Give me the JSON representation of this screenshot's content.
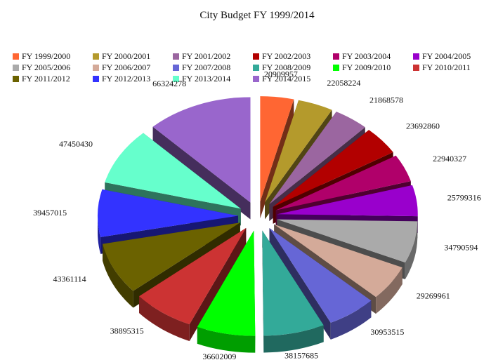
{
  "chart_data": {
    "type": "pie",
    "style": "3d-exploded",
    "title": "City Budget FY 1999/2014",
    "legend_position": "top",
    "categories": [
      "FY 1999/2000",
      "FY 2000/2001",
      "FY 2001/2002",
      "FY 2002/2003",
      "FY 2003/2004",
      "FY 2004/2005",
      "FY 2005/2006",
      "FY 2006/2007",
      "FY 2007/2008",
      "FY 2008/2009",
      "FY 2009/2010",
      "FY 2010/2011",
      "FY 2011/2012",
      "FY 2012/2013",
      "FY 2013/2014",
      "FY 2014/2015"
    ],
    "values": [
      20909957,
      22058224,
      21868578,
      23692860,
      22940327,
      25799316,
      34790594,
      29269961,
      30953515,
      38157685,
      36602009,
      38895315,
      43361114,
      39457015,
      47450430,
      66324278
    ],
    "value_labels": [
      "20909957",
      "22058224",
      "21868578",
      "23692860",
      "22940327",
      "25799316",
      "34790594",
      "29269961",
      "30953515",
      "38157685",
      "36602009",
      "38895315",
      "43361114",
      "39457015",
      "47450430",
      "66324278"
    ],
    "colors": [
      "#ff6633",
      "#b49a2c",
      "#9b66a0",
      "#b20000",
      "#b0006a",
      "#9900cc",
      "#aaaaaa",
      "#d4aa99",
      "#6666d6",
      "#33aa99",
      "#00ff00",
      "#cc3333",
      "#6b6200",
      "#3333ff",
      "#66ffcc",
      "#9966cc"
    ]
  }
}
